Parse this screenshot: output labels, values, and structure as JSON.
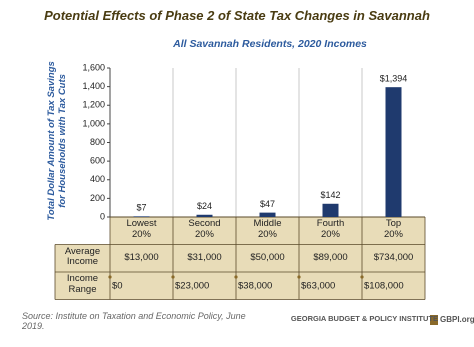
{
  "chart_data": {
    "type": "bar",
    "title": "Potential Effects of Phase 2 of State Tax Changes in Savannah",
    "subtitle": "All Savannah Residents, 2020 Incomes",
    "y_label": "Total Dollar Amount of Tax Savings\nfor Households with Tax Cuts",
    "categories": [
      "Lowest\n20%",
      "Second\n20%",
      "Middle\n20%",
      "Fourth\n20%",
      "Top\n20%"
    ],
    "values": [
      7,
      24,
      47,
      142,
      1394
    ],
    "value_labels": [
      "$7",
      "$24",
      "$47",
      "$142",
      "$1,394"
    ],
    "color": "#1f3a6e",
    "ylim": [
      0,
      1600
    ],
    "yticks": [
      0,
      200,
      400,
      600,
      800,
      {
        "value": 1000,
        "label": "1,000"
      },
      {
        "value": 1200,
        "label": "1,200"
      },
      {
        "value": 1400,
        "label": "1,400"
      },
      {
        "value": 1600,
        "label": "1,600"
      }
    ]
  },
  "table": {
    "rows": [
      {
        "label": "Average\nIncome",
        "values": [
          "$13,000",
          "$31,000",
          "$50,000",
          "$89,000",
          "$734,000"
        ]
      },
      {
        "label": "Income\nRange",
        "values": [
          "$0",
          "$23,000",
          "$38,000",
          "$63,000",
          "$108,000"
        ]
      }
    ]
  },
  "footer": {
    "source": "Source: Institute on Taxation and Economic Policy, June 2019.",
    "organization": "GEORGIA BUDGET & POLICY INSTITUTE",
    "website": "GBPI.org"
  }
}
